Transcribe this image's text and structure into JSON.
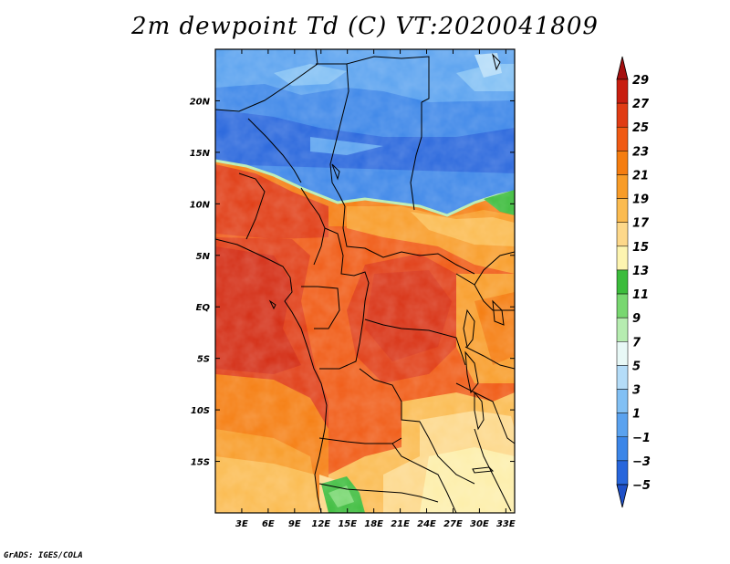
{
  "title": "2m dewpoint Td (C) VT:2020041809",
  "credit": "GrADS: IGES/COLA",
  "map": {
    "lon_range": [
      0,
      34
    ],
    "lat_range": [
      -20,
      25
    ],
    "x_ticks": [
      {
        "lon": 3,
        "label": "3E"
      },
      {
        "lon": 6,
        "label": "6E"
      },
      {
        "lon": 9,
        "label": "9E"
      },
      {
        "lon": 12,
        "label": "12E"
      },
      {
        "lon": 15,
        "label": "15E"
      },
      {
        "lon": 18,
        "label": "18E"
      },
      {
        "lon": 21,
        "label": "21E"
      },
      {
        "lon": 24,
        "label": "24E"
      },
      {
        "lon": 27,
        "label": "27E"
      },
      {
        "lon": 30,
        "label": "30E"
      },
      {
        "lon": 33,
        "label": "33E"
      }
    ],
    "y_ticks": [
      {
        "lat": 20,
        "label": "20N"
      },
      {
        "lat": 15,
        "label": "15N"
      },
      {
        "lat": 10,
        "label": "10N"
      },
      {
        "lat": 5,
        "label": "5N"
      },
      {
        "lat": 0,
        "label": "EQ"
      },
      {
        "lat": -5,
        "label": "5S"
      },
      {
        "lat": -10,
        "label": "10S"
      },
      {
        "lat": -15,
        "label": "15S"
      }
    ]
  },
  "colorbar": {
    "labels": [
      "29",
      "27",
      "25",
      "23",
      "21",
      "19",
      "17",
      "15",
      "13",
      "11",
      "9",
      "7",
      "5",
      "3",
      "1",
      "−1",
      "−3",
      "−5"
    ],
    "colors": {
      "top_arrow": "#a50f0f",
      "c27": "#c81e10",
      "c25": "#e03c14",
      "c23": "#f05a14",
      "c21": "#f57d10",
      "c19": "#f89c28",
      "c17": "#fbbb50",
      "c15": "#fdd88a",
      "c13": "#fdf4b0",
      "c11": "#3cbc3c",
      "c9": "#78d770",
      "c7": "#b6ecb0",
      "c5": "#e8f8f6",
      "c3": "#b4dcf8",
      "c1": "#82c0f4",
      "cm1": "#5aa2ef",
      "cm3": "#3c86e8",
      "cm5": "#2866dc",
      "bottom_arrow": "#1e50c8"
    }
  }
}
